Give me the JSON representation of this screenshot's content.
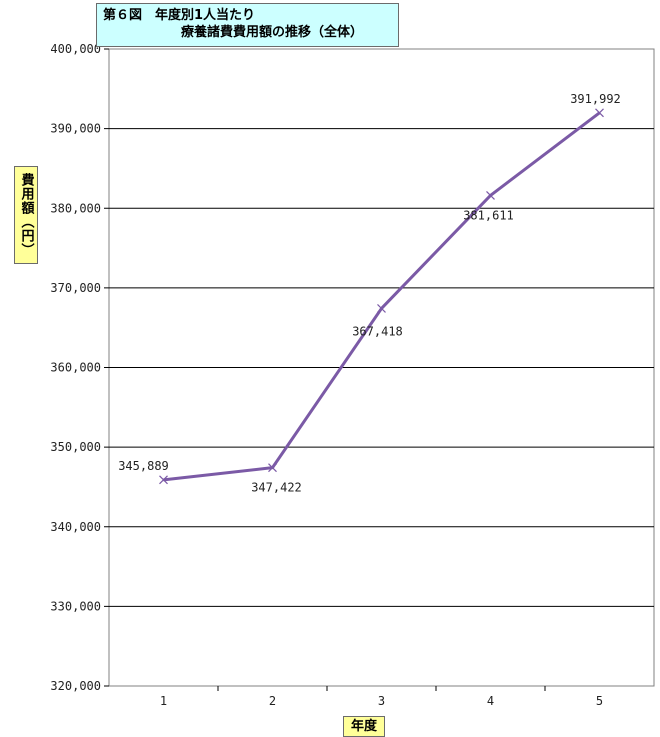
{
  "chart_data": {
    "type": "line",
    "title_line1": "第６図　年度別1人当たり",
    "title_line2": "療養諸費費用額の推移（全体）",
    "xlabel": "年度",
    "ylabel": "費用額（円）",
    "categories": [
      "1",
      "2",
      "3",
      "4",
      "5"
    ],
    "series": [
      {
        "values": [
          345889,
          347422,
          367418,
          381611,
          391992
        ]
      }
    ],
    "data_labels": [
      "345,889",
      "347,422",
      "367,418",
      "381,611",
      "391,992"
    ],
    "ylim": [
      320000,
      400000
    ],
    "yticks": [
      "320,000",
      "330,000",
      "340,000",
      "350,000",
      "360,000",
      "370,000",
      "380,000",
      "390,000",
      "400,000"
    ],
    "grid": true,
    "line_color": "#7b5aa6",
    "grid_color": "#000000"
  }
}
